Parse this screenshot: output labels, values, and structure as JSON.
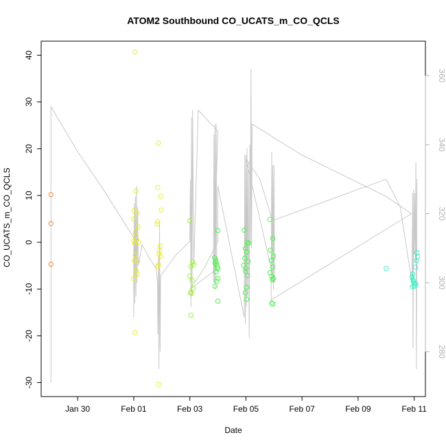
{
  "chart_data": {
    "type": "scatter",
    "title": "ATOM2 Southbound CO_UCATS_m_CO_QCLS",
    "xlabel": "Date",
    "ylabel": "CO_UCATS_m_CO_QCLS",
    "x_axis": {
      "unit": "days since 2017-01-29",
      "lim": [
        -0.3,
        13.4
      ],
      "ticks": [
        {
          "x": 1,
          "label": "Jan 30"
        },
        {
          "x": 3,
          "label": "Feb 01"
        },
        {
          "x": 5,
          "label": "Feb 03"
        },
        {
          "x": 7,
          "label": "Feb 05"
        },
        {
          "x": 9,
          "label": "Feb 07"
        },
        {
          "x": 11,
          "label": "Feb 09"
        },
        {
          "x": 13,
          "label": "Feb 11"
        }
      ]
    },
    "y_left": {
      "lim": [
        -33,
        43
      ],
      "ticks": [
        -30,
        -20,
        -10,
        0,
        10,
        20,
        30,
        40
      ],
      "tick_labels": [
        "-30",
        "-20",
        "-10",
        "0",
        "10",
        "20",
        "30",
        "40"
      ]
    },
    "y_right": {
      "lim": [
        267,
        370
      ],
      "ticks": [
        280,
        300,
        320,
        340,
        360
      ],
      "tick_labels": [
        "280",
        "300",
        "320",
        "340",
        "360"
      ],
      "color": "#b3b3b3"
    },
    "grid": false,
    "legend": "none",
    "line_series": {
      "name": "",
      "color": "#c8c8c8",
      "axis": "right",
      "points": [
        [
          0.05,
          271
        ],
        [
          0.05,
          351
        ],
        [
          1.0,
          338
        ],
        [
          2.0,
          326
        ],
        [
          3.0,
          313
        ],
        [
          3.0,
          290
        ],
        [
          3.02,
          323
        ],
        [
          3.04,
          294
        ],
        [
          3.06,
          325
        ],
        [
          3.08,
          296
        ],
        [
          3.1,
          328
        ],
        [
          3.12,
          300
        ],
        [
          3.14,
          322
        ],
        [
          3.16,
          305
        ],
        [
          3.3,
          311
        ],
        [
          3.5,
          308
        ],
        [
          3.8,
          304
        ],
        [
          3.85,
          300
        ],
        [
          3.86,
          285
        ],
        [
          3.88,
          308
        ],
        [
          3.9,
          275
        ],
        [
          3.92,
          318
        ],
        [
          3.94,
          280
        ],
        [
          3.96,
          302
        ],
        [
          4.5,
          308
        ],
        [
          5.0,
          312
        ],
        [
          5.02,
          330
        ],
        [
          5.04,
          293
        ],
        [
          5.06,
          348
        ],
        [
          5.08,
          296
        ],
        [
          5.1,
          350
        ],
        [
          5.14,
          305
        ],
        [
          5.3,
          350
        ],
        [
          6.0,
          344
        ],
        [
          5.84,
          300
        ],
        [
          5.86,
          343
        ],
        [
          5.88,
          300
        ],
        [
          5.9,
          346
        ],
        [
          5.92,
          298
        ],
        [
          5.94,
          346
        ],
        [
          5.96,
          304
        ],
        [
          5.0,
          298
        ],
        [
          5.5,
          304
        ],
        [
          6.0,
          312
        ],
        [
          6.0,
          328
        ],
        [
          6.94,
          290
        ],
        [
          6.96,
          337
        ],
        [
          6.98,
          288
        ],
        [
          7.0,
          337
        ],
        [
          7.02,
          293
        ],
        [
          7.04,
          339
        ],
        [
          7.06,
          296
        ],
        [
          7.08,
          335
        ],
        [
          7.12,
          284
        ],
        [
          7.14,
          340
        ],
        [
          7.16,
          311
        ],
        [
          7.18,
          362
        ],
        [
          7.2,
          310
        ],
        [
          7.22,
          346
        ],
        [
          8.0,
          342
        ],
        [
          9.0,
          337
        ],
        [
          10.0,
          333
        ],
        [
          11.0,
          329
        ],
        [
          12.0,
          325
        ],
        [
          12.9,
          320
        ],
        [
          7.9,
          295
        ],
        [
          7.92,
          338
        ],
        [
          7.94,
          300
        ],
        [
          7.96,
          334
        ],
        [
          7.98,
          298
        ],
        [
          8.0,
          334
        ],
        [
          8.02,
          300
        ],
        [
          7.0,
          336
        ],
        [
          7.5,
          330
        ],
        [
          7.95,
          318
        ],
        [
          12.0,
          330
        ],
        [
          12.5,
          322
        ],
        [
          12.92,
          300
        ],
        [
          12.94,
          326
        ],
        [
          12.96,
          281
        ],
        [
          12.98,
          327
        ],
        [
          13.0,
          308
        ],
        [
          13.02,
          326
        ],
        [
          13.04,
          306
        ],
        [
          13.06,
          335
        ],
        [
          13.08,
          275
        ],
        [
          13.1,
          330
        ]
      ]
    },
    "scatter_groups": [
      {
        "name": "",
        "color": "#f08a3a",
        "points": [
          [
            0.05,
            10.2
          ],
          [
            0.05,
            4.0
          ],
          [
            0.05,
            -4.7
          ]
        ]
      },
      {
        "name": "",
        "color": "#e8ec33",
        "points": [
          [
            3.05,
            40.7
          ],
          [
            3.08,
            11.0
          ],
          [
            3.02,
            6.8
          ],
          [
            3.12,
            6.2
          ],
          [
            3.0,
            5.0
          ],
          [
            3.15,
            3.3
          ],
          [
            3.05,
            2.0
          ],
          [
            3.1,
            0.6
          ],
          [
            3.0,
            0.3
          ],
          [
            3.18,
            0.0
          ],
          [
            3.04,
            -0.2
          ],
          [
            3.06,
            -2.7
          ],
          [
            3.02,
            -3.9
          ],
          [
            3.14,
            -4.1
          ],
          [
            3.08,
            -6.0
          ],
          [
            3.12,
            -6.8
          ],
          [
            3.0,
            -7.8
          ],
          [
            3.05,
            -19.3
          ],
          [
            3.88,
            21.2
          ],
          [
            3.86,
            11.7
          ],
          [
            3.96,
            9.8
          ],
          [
            3.98,
            6.9
          ],
          [
            3.86,
            4.4
          ],
          [
            3.84,
            3.9
          ],
          [
            3.94,
            -0.8
          ],
          [
            3.92,
            -1.8
          ],
          [
            3.9,
            -2.5
          ],
          [
            3.96,
            -3.0
          ],
          [
            3.88,
            -4.8
          ],
          [
            3.86,
            -5.2
          ],
          [
            3.89,
            -30.4
          ]
        ]
      },
      {
        "name": "",
        "color": "#9cf233",
        "points": [
          [
            5.0,
            4.6
          ],
          [
            5.1,
            -4.2
          ],
          [
            5.04,
            -5.2
          ],
          [
            5.14,
            -4.8
          ],
          [
            5.0,
            -7.2
          ],
          [
            5.08,
            -8.1
          ],
          [
            5.12,
            -9.9
          ],
          [
            5.02,
            -10.8
          ],
          [
            5.06,
            -10.9
          ],
          [
            5.04,
            -15.6
          ]
        ]
      },
      {
        "name": "",
        "color": "#4ef04f",
        "points": [
          [
            5.88,
            -3.3
          ],
          [
            5.92,
            -3.7
          ],
          [
            5.94,
            -4.2
          ],
          [
            5.9,
            -4.5
          ],
          [
            5.96,
            -4.8
          ],
          [
            5.98,
            -5.3
          ],
          [
            6.0,
            -5.7
          ],
          [
            5.94,
            -6.3
          ],
          [
            6.0,
            -7.7
          ],
          [
            5.96,
            -8.3
          ],
          [
            5.9,
            -9.4
          ],
          [
            6.0,
            2.5
          ],
          [
            6.0,
            -12.6
          ],
          [
            6.94,
            2.6
          ],
          [
            7.04,
            0.0
          ],
          [
            7.1,
            -0.2
          ],
          [
            6.98,
            -1.3
          ],
          [
            7.02,
            -2.1
          ],
          [
            6.96,
            -3.4
          ],
          [
            7.08,
            -4.1
          ],
          [
            6.92,
            -4.9
          ],
          [
            7.0,
            -5.6
          ],
          [
            6.98,
            -6.2
          ],
          [
            7.06,
            -7.1
          ],
          [
            7.02,
            -9.6
          ],
          [
            6.98,
            -10.8
          ],
          [
            7.02,
            -12.2
          ],
          [
            7.86,
            4.9
          ],
          [
            7.96,
            0.8
          ],
          [
            7.88,
            -1.7
          ],
          [
            7.98,
            -3.0
          ],
          [
            7.9,
            -3.9
          ],
          [
            7.96,
            -5.3
          ],
          [
            7.86,
            -6.5
          ],
          [
            7.92,
            -7.3
          ],
          [
            7.98,
            -7.7
          ],
          [
            7.94,
            -8.0
          ],
          [
            7.92,
            -13.0
          ],
          [
            7.96,
            -13.2
          ]
        ]
      },
      {
        "name": "",
        "color": "#33f0c6",
        "points": [
          [
            12.0,
            -5.6
          ],
          [
            12.95,
            -6.8
          ],
          [
            12.92,
            -7.4
          ],
          [
            12.96,
            -8.1
          ],
          [
            12.98,
            -8.5
          ],
          [
            13.02,
            -8.8
          ],
          [
            13.06,
            -9.0
          ],
          [
            13.1,
            -2.2
          ],
          [
            13.12,
            -3.1
          ],
          [
            13.08,
            -3.9
          ],
          [
            13.04,
            -5.3
          ],
          [
            13.0,
            -9.4
          ],
          [
            12.94,
            -9.5
          ]
        ]
      }
    ]
  }
}
